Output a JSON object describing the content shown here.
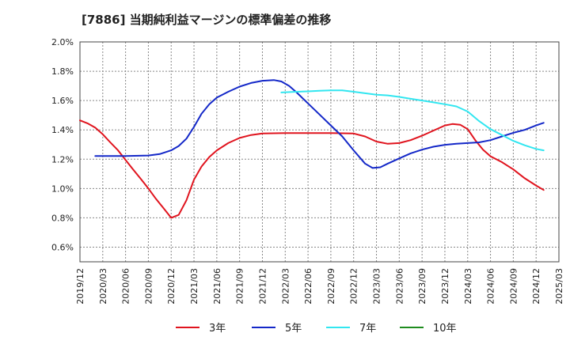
{
  "chart_data": {
    "type": "line",
    "title": "[7886]  当期純利益マージンの標準偏差の推移",
    "x": [
      "2019/12",
      "2020/03",
      "2020/06",
      "2020/09",
      "2020/12",
      "2021/03",
      "2021/06",
      "2021/09",
      "2021/12",
      "2022/03",
      "2022/06",
      "2022/09",
      "2022/12",
      "2023/03",
      "2023/06",
      "2023/09",
      "2023/12",
      "2024/03",
      "2024/06",
      "2024/09",
      "2024/12",
      "2025/03"
    ],
    "yticks": [
      "2.0%",
      "1.8%",
      "1.6%",
      "1.4%",
      "1.2%",
      "1.0%",
      "0.8%",
      "0.6%"
    ],
    "ylim": [
      0.5,
      2.0
    ],
    "grid": true,
    "legend_position": "bottom",
    "colors": {
      "3y": "#e0141e",
      "5y": "#1428c8",
      "7y": "#32e6f0",
      "10y": "#1e8c1e"
    },
    "series": [
      {
        "name": "3年",
        "key": "3y",
        "points": [
          [
            0,
            1.465
          ],
          [
            0.33,
            1.445
          ],
          [
            0.67,
            1.415
          ],
          [
            1,
            1.37
          ],
          [
            1.33,
            1.315
          ],
          [
            1.67,
            1.26
          ],
          [
            2,
            1.195
          ],
          [
            2.33,
            1.13
          ],
          [
            2.67,
            1.065
          ],
          [
            3,
            1.0
          ],
          [
            3.33,
            0.93
          ],
          [
            3.67,
            0.865
          ],
          [
            4,
            0.8
          ],
          [
            4.33,
            0.82
          ],
          [
            4.67,
            0.92
          ],
          [
            5,
            1.06
          ],
          [
            5.33,
            1.15
          ],
          [
            5.67,
            1.215
          ],
          [
            6,
            1.26
          ],
          [
            6.5,
            1.31
          ],
          [
            7,
            1.345
          ],
          [
            7.5,
            1.365
          ],
          [
            8,
            1.375
          ],
          [
            9,
            1.378
          ],
          [
            10,
            1.378
          ],
          [
            11,
            1.378
          ],
          [
            12,
            1.375
          ],
          [
            12.5,
            1.355
          ],
          [
            13,
            1.32
          ],
          [
            13.5,
            1.305
          ],
          [
            14,
            1.31
          ],
          [
            14.5,
            1.33
          ],
          [
            15,
            1.36
          ],
          [
            15.5,
            1.395
          ],
          [
            16,
            1.43
          ],
          [
            16.33,
            1.44
          ],
          [
            16.67,
            1.435
          ],
          [
            17,
            1.405
          ],
          [
            17.33,
            1.33
          ],
          [
            17.67,
            1.265
          ],
          [
            18,
            1.22
          ],
          [
            18.5,
            1.18
          ],
          [
            19,
            1.13
          ],
          [
            19.5,
            1.07
          ],
          [
            20,
            1.02
          ],
          [
            20.33,
            0.99
          ]
        ]
      },
      {
        "name": "5年",
        "key": "5y",
        "points": [
          [
            0.67,
            1.222
          ],
          [
            1,
            1.222
          ],
          [
            2,
            1.222
          ],
          [
            3,
            1.225
          ],
          [
            3.5,
            1.235
          ],
          [
            4,
            1.26
          ],
          [
            4.33,
            1.29
          ],
          [
            4.67,
            1.34
          ],
          [
            5,
            1.42
          ],
          [
            5.33,
            1.51
          ],
          [
            5.67,
            1.575
          ],
          [
            6,
            1.62
          ],
          [
            6.5,
            1.66
          ],
          [
            7,
            1.695
          ],
          [
            7.5,
            1.72
          ],
          [
            8,
            1.735
          ],
          [
            8.5,
            1.74
          ],
          [
            8.83,
            1.73
          ],
          [
            9.17,
            1.7
          ],
          [
            9.5,
            1.655
          ],
          [
            10,
            1.58
          ],
          [
            10.5,
            1.505
          ],
          [
            11,
            1.43
          ],
          [
            11.5,
            1.355
          ],
          [
            12,
            1.26
          ],
          [
            12.5,
            1.17
          ],
          [
            12.83,
            1.14
          ],
          [
            13.17,
            1.145
          ],
          [
            13.5,
            1.17
          ],
          [
            14,
            1.205
          ],
          [
            14.5,
            1.24
          ],
          [
            15,
            1.265
          ],
          [
            15.5,
            1.285
          ],
          [
            16,
            1.298
          ],
          [
            16.5,
            1.305
          ],
          [
            17,
            1.31
          ],
          [
            17.5,
            1.315
          ],
          [
            18,
            1.33
          ],
          [
            18.5,
            1.355
          ],
          [
            19,
            1.38
          ],
          [
            19.5,
            1.4
          ],
          [
            20,
            1.43
          ],
          [
            20.33,
            1.448
          ]
        ]
      },
      {
        "name": "7年",
        "key": "7y",
        "points": [
          [
            8.83,
            1.655
          ],
          [
            9.5,
            1.66
          ],
          [
            10,
            1.663
          ],
          [
            10.5,
            1.667
          ],
          [
            11,
            1.67
          ],
          [
            11.5,
            1.67
          ],
          [
            12,
            1.66
          ],
          [
            12.5,
            1.65
          ],
          [
            13,
            1.64
          ],
          [
            13.5,
            1.635
          ],
          [
            14,
            1.625
          ],
          [
            14.5,
            1.612
          ],
          [
            15,
            1.6
          ],
          [
            15.5,
            1.588
          ],
          [
            16,
            1.575
          ],
          [
            16.5,
            1.56
          ],
          [
            17,
            1.525
          ],
          [
            17.5,
            1.46
          ],
          [
            18,
            1.405
          ],
          [
            18.5,
            1.365
          ],
          [
            19,
            1.325
          ],
          [
            19.5,
            1.295
          ],
          [
            20,
            1.27
          ],
          [
            20.33,
            1.26
          ]
        ]
      },
      {
        "name": "10年",
        "key": "10y",
        "points": []
      }
    ]
  }
}
